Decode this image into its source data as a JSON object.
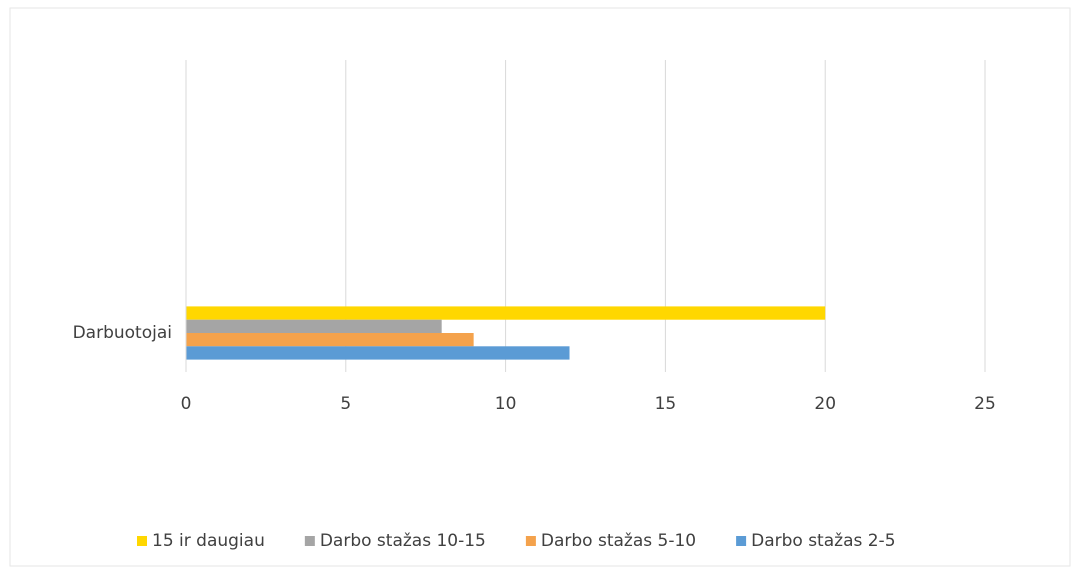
{
  "chart_data": {
    "type": "bar",
    "categories": [
      "Darbuotojai"
    ],
    "series": [
      {
        "name": "15 ir daugiau",
        "color": "#ffd700",
        "values": [
          20
        ]
      },
      {
        "name": "Darbo stažas 10-15",
        "color": "#a5a5a5",
        "values": [
          8
        ]
      },
      {
        "name": "Darbo stažas 5-10",
        "color": "#f4a24c",
        "values": [
          9
        ]
      },
      {
        "name": "Darbo stažas 2-5",
        "color": "#5b9bd5",
        "values": [
          12
        ]
      }
    ],
    "xlim": [
      0,
      25
    ],
    "xticks": [
      0,
      5,
      10,
      15,
      20,
      25
    ],
    "grid": true,
    "legend": "bottom"
  }
}
